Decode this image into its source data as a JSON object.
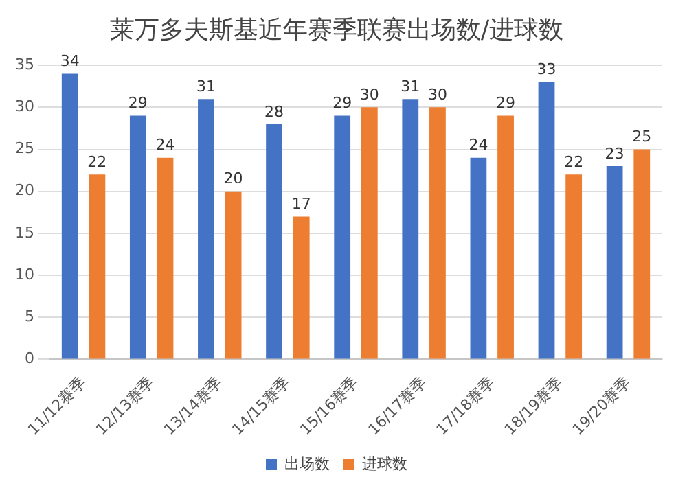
{
  "chart_data": {
    "type": "bar",
    "title": "莱万多夫斯基近年赛季联赛出场数/进球数",
    "categories": [
      "11/12赛季",
      "12/13赛季",
      "13/14赛季",
      "14/15赛季",
      "15/16赛季",
      "16/17赛季",
      "17/18赛季",
      "18/19赛季",
      "19/20赛季"
    ],
    "series": [
      {
        "name": "出场数",
        "color": "#4472c4",
        "values": [
          34,
          29,
          31,
          28,
          29,
          31,
          24,
          33,
          23
        ]
      },
      {
        "name": "进球数",
        "color": "#ed7d31",
        "values": [
          22,
          24,
          20,
          17,
          30,
          30,
          29,
          22,
          25
        ]
      }
    ],
    "ylim": [
      0,
      35
    ],
    "yticks": [
      0,
      5,
      10,
      15,
      20,
      25,
      30,
      35
    ],
    "grid": "y",
    "legend": "bottom",
    "data_labels": true
  }
}
